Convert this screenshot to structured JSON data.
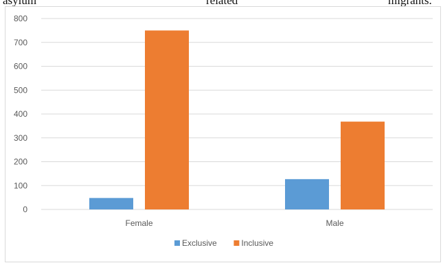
{
  "header_text": {
    "left": "asylum",
    "middle": "related",
    "right": "migrants."
  },
  "colors": {
    "exclusive": "#5b9bd5",
    "inclusive": "#ed7d31",
    "grid": "#d9d9d9",
    "text": "#595959"
  },
  "chart_data": {
    "type": "bar",
    "title": "",
    "xlabel": "",
    "ylabel": "",
    "categories": [
      "Female",
      "Male"
    ],
    "series": [
      {
        "name": "Exclusive",
        "values": [
          48,
          127
        ]
      },
      {
        "name": "Inclusive",
        "values": [
          750,
          368
        ]
      }
    ],
    "ylim": [
      0,
      800
    ],
    "yticks": [
      "0",
      "100",
      "200",
      "300",
      "400",
      "500",
      "600",
      "700",
      "800"
    ],
    "grid": true,
    "legend_position": "bottom"
  }
}
